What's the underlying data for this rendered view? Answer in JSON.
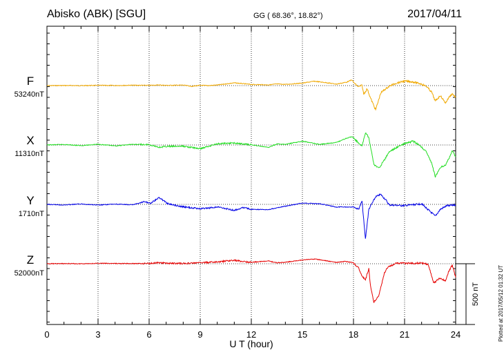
{
  "header": {
    "station": "Abisko (ABK)  [SGU]",
    "coordinates": "GG ( 68.36°,  18.82°)",
    "date": "2017/04/11"
  },
  "plotted_note": "Plotted at 2017/05/12 01:32 UT",
  "chart_data": {
    "type": "line",
    "xlabel": "U T (hour)",
    "xlim": [
      0,
      24
    ],
    "xticks": [
      "0",
      "3",
      "6",
      "9",
      "12",
      "15",
      "18",
      "21",
      "24"
    ],
    "scale_bar_label": "500 nT",
    "scale_bar_nT": 500,
    "grid": "dotted vertical every 3 h and baseline per trace",
    "series": [
      {
        "name": "F",
        "baseline_label": "53240nT",
        "color": "#f0a800",
        "points": [
          [
            0,
            0
          ],
          [
            1,
            -1
          ],
          [
            2,
            0
          ],
          [
            3,
            -2
          ],
          [
            4,
            -1
          ],
          [
            5,
            -3
          ],
          [
            6,
            -2
          ],
          [
            6.6,
            -5
          ],
          [
            7,
            -2
          ],
          [
            8,
            -4
          ],
          [
            8.5,
            6
          ],
          [
            9,
            -2
          ],
          [
            9.5,
            0
          ],
          [
            10,
            -5
          ],
          [
            11,
            -22
          ],
          [
            11.5,
            -16
          ],
          [
            12,
            -9
          ],
          [
            13,
            -6
          ],
          [
            13.5,
            -13
          ],
          [
            14,
            -10
          ],
          [
            15,
            -20
          ],
          [
            15.7,
            -35
          ],
          [
            16.5,
            -22
          ],
          [
            17,
            -12
          ],
          [
            17.6,
            -28
          ],
          [
            17.9,
            -46
          ],
          [
            18.1,
            -12
          ],
          [
            18.3,
            10
          ],
          [
            18.5,
            -3
          ],
          [
            18.6,
            70
          ],
          [
            18.8,
            25
          ],
          [
            19.0,
            100
          ],
          [
            19.3,
            195
          ],
          [
            19.6,
            60
          ],
          [
            19.8,
            35
          ],
          [
            20.1,
            5
          ],
          [
            20.5,
            -20
          ],
          [
            21,
            -36
          ],
          [
            21.5,
            -30
          ],
          [
            22,
            -12
          ],
          [
            22.3,
            8
          ],
          [
            22.6,
            55
          ],
          [
            22.8,
            125
          ],
          [
            23.1,
            80
          ],
          [
            23.4,
            140
          ],
          [
            23.6,
            95
          ],
          [
            23.8,
            65
          ],
          [
            24,
            95
          ]
        ]
      },
      {
        "name": "X",
        "baseline_label": "11310nT",
        "color": "#22dd22",
        "points": [
          [
            0,
            0
          ],
          [
            1,
            -4
          ],
          [
            2,
            5
          ],
          [
            3,
            -6
          ],
          [
            4,
            8
          ],
          [
            5,
            -5
          ],
          [
            6,
            -3
          ],
          [
            6.6,
            18
          ],
          [
            7,
            12
          ],
          [
            8,
            10
          ],
          [
            9,
            30
          ],
          [
            9.5,
            10
          ],
          [
            10,
            -10
          ],
          [
            11,
            -15
          ],
          [
            12,
            -2
          ],
          [
            13,
            20
          ],
          [
            13.5,
            -8
          ],
          [
            14,
            -5
          ],
          [
            15,
            -30
          ],
          [
            15.5,
            -18
          ],
          [
            16,
            -5
          ],
          [
            17,
            -20
          ],
          [
            17.5,
            -50
          ],
          [
            17.9,
            -68
          ],
          [
            18.2,
            -30
          ],
          [
            18.5,
            10
          ],
          [
            18.7,
            -100
          ],
          [
            18.9,
            -60
          ],
          [
            19.2,
            160
          ],
          [
            19.5,
            185
          ],
          [
            19.8,
            125
          ],
          [
            20.1,
            55
          ],
          [
            20.6,
            15
          ],
          [
            21,
            -10
          ],
          [
            21.5,
            -30
          ],
          [
            22,
            15
          ],
          [
            22.3,
            60
          ],
          [
            22.6,
            150
          ],
          [
            22.8,
            255
          ],
          [
            23.1,
            180
          ],
          [
            23.4,
            160
          ],
          [
            23.6,
            110
          ],
          [
            23.8,
            45
          ],
          [
            24,
            95
          ]
        ]
      },
      {
        "name": "Y",
        "baseline_label": "1710nT",
        "color": "#0000e6",
        "points": [
          [
            0,
            0
          ],
          [
            1,
            5
          ],
          [
            2,
            -3
          ],
          [
            3,
            6
          ],
          [
            4,
            -2
          ],
          [
            5,
            4
          ],
          [
            5.7,
            -20
          ],
          [
            6.1,
            -10
          ],
          [
            6.6,
            -55
          ],
          [
            7.1,
            -5
          ],
          [
            8,
            20
          ],
          [
            9,
            35
          ],
          [
            9.5,
            30
          ],
          [
            10,
            20
          ],
          [
            11,
            48
          ],
          [
            11.5,
            25
          ],
          [
            12,
            40
          ],
          [
            13,
            42
          ],
          [
            14,
            15
          ],
          [
            15,
            -10
          ],
          [
            16,
            -5
          ],
          [
            17,
            22
          ],
          [
            18,
            20
          ],
          [
            18.3,
            40
          ],
          [
            18.5,
            -25
          ],
          [
            18.7,
            280
          ],
          [
            18.9,
            40
          ],
          [
            19.3,
            -60
          ],
          [
            19.6,
            -80
          ],
          [
            19.9,
            -35
          ],
          [
            20.1,
            5
          ],
          [
            21,
            10
          ],
          [
            22,
            -5
          ],
          [
            22.8,
            95
          ],
          [
            23.1,
            40
          ],
          [
            23.5,
            10
          ],
          [
            24,
            5
          ]
        ]
      },
      {
        "name": "Z",
        "baseline_label": "52000nT",
        "color": "#e60000",
        "points": [
          [
            0,
            0
          ],
          [
            1,
            -1
          ],
          [
            2,
            0
          ],
          [
            3,
            -3
          ],
          [
            4,
            -2
          ],
          [
            5,
            -1
          ],
          [
            6,
            -3
          ],
          [
            6.6,
            -8
          ],
          [
            7,
            -4
          ],
          [
            8,
            -2
          ],
          [
            9,
            -8
          ],
          [
            10,
            -14
          ],
          [
            11,
            -28
          ],
          [
            11.5,
            -18
          ],
          [
            12,
            -12
          ],
          [
            13,
            -22
          ],
          [
            13.5,
            -8
          ],
          [
            14,
            -12
          ],
          [
            15,
            -30
          ],
          [
            15.7,
            -38
          ],
          [
            16.5,
            -22
          ],
          [
            17,
            -10
          ],
          [
            17.5,
            -18
          ],
          [
            18,
            -8
          ],
          [
            18.3,
            35
          ],
          [
            18.5,
            100
          ],
          [
            18.7,
            130
          ],
          [
            18.9,
            40
          ],
          [
            19.0,
            180
          ],
          [
            19.2,
            310
          ],
          [
            19.5,
            250
          ],
          [
            19.8,
            80
          ],
          [
            20,
            30
          ],
          [
            20.5,
            -5
          ],
          [
            21,
            -3
          ],
          [
            22,
            -5
          ],
          [
            22.4,
            5
          ],
          [
            22.7,
            155
          ],
          [
            23.1,
            115
          ],
          [
            23.4,
            140
          ],
          [
            23.6,
            60
          ],
          [
            23.8,
            10
          ],
          [
            24,
            110
          ]
        ]
      }
    ]
  }
}
